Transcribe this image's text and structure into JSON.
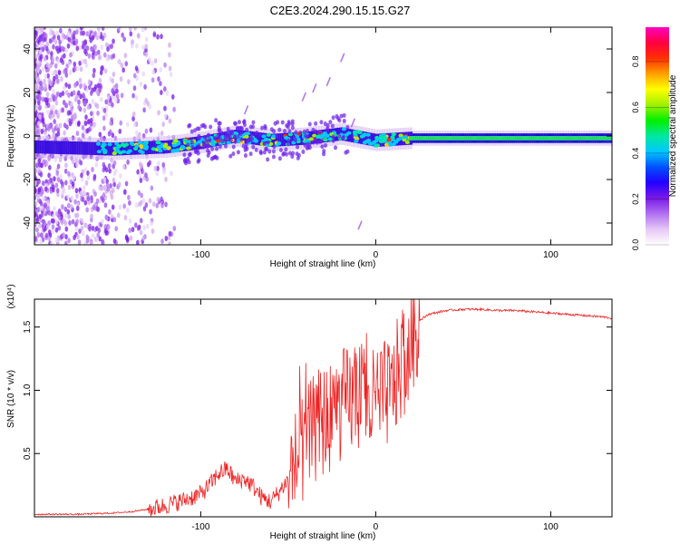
{
  "title": "C2E3.2024.290.15.15.G27",
  "chart_data": [
    {
      "type": "heatmap",
      "title": "C2E3.2024.290.15.15.G27",
      "xlabel": "Height of straight line (km)",
      "ylabel": "Frequency (Hz)",
      "xlim": [
        -195,
        135
      ],
      "ylim": [
        -50,
        50
      ],
      "xticks": [
        -100,
        0,
        100
      ],
      "yticks": [
        -40,
        -20,
        0,
        20,
        40
      ],
      "xtick_labels": [
        "-100",
        "0",
        "100"
      ],
      "ytick_labels": [
        "-40",
        "-20",
        "0",
        "20",
        "40"
      ],
      "colorbar": {
        "label": "Normalized spectral amplitude",
        "range": [
          0,
          0.95
        ],
        "ticks": [
          0.0,
          0.2,
          0.4,
          0.6,
          0.8
        ],
        "tick_labels": [
          "0.0",
          "0.2",
          "0.4",
          "0.6",
          "0.8"
        ],
        "colors": [
          "#ffffff",
          "#e6c8f5",
          "#b070f0",
          "#7a1ae8",
          "#2200ff",
          "#0050ff",
          "#00c8ff",
          "#00e8a0",
          "#00f000",
          "#a0f000",
          "#ffff00",
          "#ffa000",
          "#ff3000",
          "#ff0040",
          "#ff00c0"
        ]
      },
      "band_center": [
        {
          "x": -195,
          "y": -5
        },
        {
          "x": -150,
          "y": -6
        },
        {
          "x": -120,
          "y": -5
        },
        {
          "x": -100,
          "y": -3
        },
        {
          "x": -80,
          "y": 0
        },
        {
          "x": -60,
          "y": -2
        },
        {
          "x": -40,
          "y": -1
        },
        {
          "x": -20,
          "y": 1
        },
        {
          "x": 0,
          "y": -2
        },
        {
          "x": 20,
          "y": -1
        },
        {
          "x": 60,
          "y": -1
        },
        {
          "x": 135,
          "y": -1
        }
      ]
    },
    {
      "type": "line",
      "xlabel": "Height of straight line (km)",
      "ylabel": "SNR (10 * v/v)",
      "y_multiplier": "(x10⁴)",
      "xlim": [
        -195,
        135
      ],
      "ylim": [
        0,
        1.72
      ],
      "xticks": [
        -100,
        0,
        100
      ],
      "yticks": [
        0.5,
        1.0,
        1.5
      ],
      "xtick_labels": [
        "-100",
        "0",
        "100"
      ],
      "ytick_labels": [
        "0.5",
        "1.0",
        "1.5"
      ],
      "series_color": "#ee2222",
      "series": [
        {
          "x": [
            -195,
            -170,
            -150,
            -140,
            -130,
            -120,
            -110,
            -100,
            -95,
            -90,
            -85,
            -80,
            -75,
            -70,
            -65,
            -60,
            -55,
            -50,
            -45,
            -40,
            -35,
            -30,
            -25,
            -20,
            -15,
            -10,
            -5,
            0,
            5,
            10,
            15,
            20,
            25,
            30,
            40,
            50,
            60,
            70,
            80,
            90,
            100,
            110,
            120,
            130,
            135
          ],
          "y": [
            0.02,
            0.02,
            0.03,
            0.04,
            0.06,
            0.09,
            0.13,
            0.18,
            0.25,
            0.34,
            0.38,
            0.28,
            0.3,
            0.24,
            0.15,
            0.12,
            0.2,
            0.3,
            0.45,
            0.55,
            0.7,
            0.75,
            0.8,
            0.88,
            0.92,
            0.95,
            0.9,
            0.88,
            0.95,
            1.05,
            1.2,
            1.4,
            1.55,
            1.6,
            1.63,
            1.64,
            1.64,
            1.63,
            1.63,
            1.62,
            1.61,
            1.6,
            1.59,
            1.58,
            1.57
          ]
        }
      ]
    }
  ]
}
